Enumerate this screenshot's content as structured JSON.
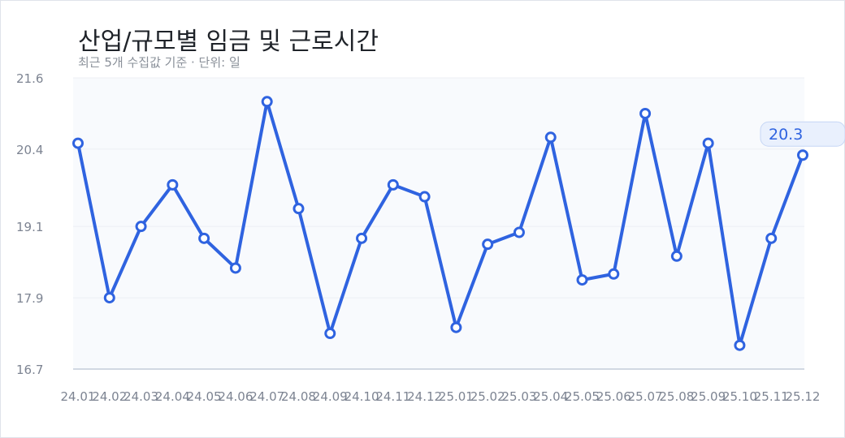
{
  "title": "산업/규모별 임금 및 근로시간",
  "subtitle": "최근 5개 수집값 기준 · 단위: 일",
  "colors": {
    "line": "#2f63e0",
    "plot_bg": "#f8fafd",
    "grid": "#eceff4",
    "axis": "#c4ccd9",
    "tick_text": "#7d8492",
    "callout_bg": "#e9f0fd",
    "callout_border": "#c6d6f5"
  },
  "chart_data": {
    "type": "line",
    "title": "산업/규모별 임금 및 근로시간",
    "subtitle": "최근 5개 수집값 기준 · 단위: 일",
    "xlabel": "",
    "ylabel": "",
    "categories": [
      "24.01",
      "24.02",
      "24.03",
      "24.04",
      "24.05",
      "24.06",
      "24.07",
      "24.08",
      "24.09",
      "24.10",
      "24.11",
      "24.12",
      "25.01",
      "25.02",
      "25.03",
      "25.04",
      "25.05",
      "25.06",
      "25.07",
      "25.08",
      "25.09",
      "25.10",
      "25.11",
      "25.12"
    ],
    "series": [
      {
        "values": [
          20.5,
          17.9,
          19.1,
          19.8,
          18.9,
          18.4,
          21.2,
          19.4,
          17.3,
          18.9,
          19.8,
          19.6,
          17.4,
          18.8,
          19.0,
          20.6,
          18.2,
          18.3,
          21.0,
          18.6,
          20.5,
          17.1,
          18.9,
          20.3
        ]
      }
    ],
    "yticks": [
      16.7,
      17.9,
      19.1,
      20.4,
      21.6
    ],
    "ytick_labels": [
      "16.7",
      "17.9",
      "19.1",
      "20.4",
      "21.6"
    ],
    "ylim": [
      16.7,
      21.6
    ],
    "grid": true,
    "last_value_label": "20.3"
  }
}
